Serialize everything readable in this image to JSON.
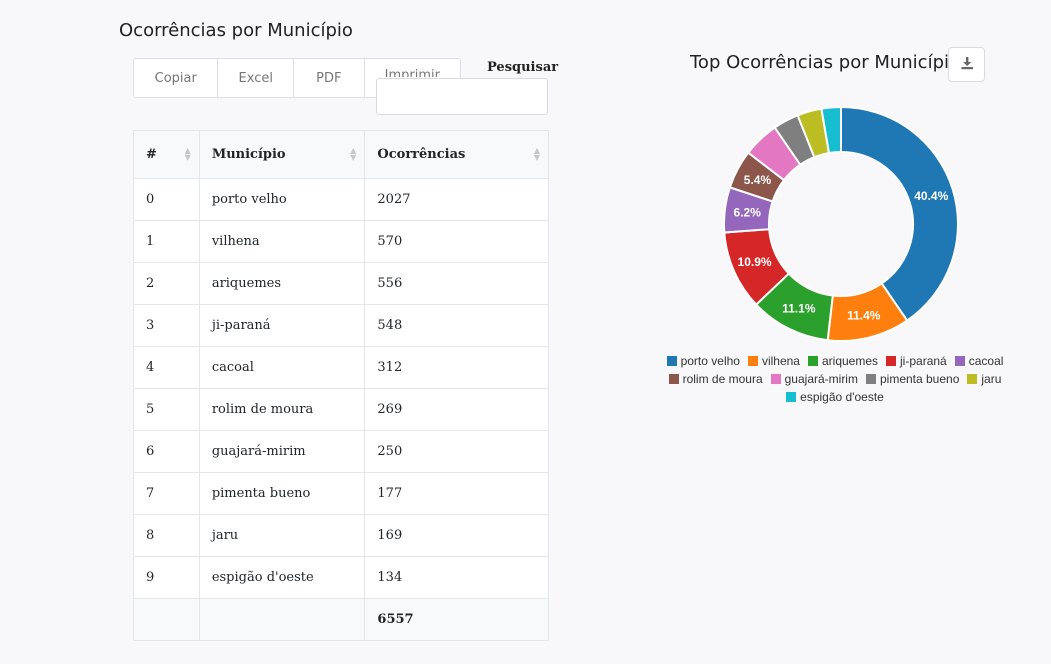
{
  "left_title": "Ocorrências por Município",
  "buttons": [
    "Copiar",
    "Excel",
    "PDF",
    "Imprimir"
  ],
  "search": {
    "label": "Pesquisar",
    "value": ""
  },
  "table": {
    "headers": [
      "#",
      "Município",
      "Ocorrências"
    ],
    "rows": [
      [
        "0",
        "porto velho",
        "2027"
      ],
      [
        "1",
        "vilhena",
        "570"
      ],
      [
        "2",
        "ariquemes",
        "556"
      ],
      [
        "3",
        "ji-paraná",
        "548"
      ],
      [
        "4",
        "cacoal",
        "312"
      ],
      [
        "5",
        "rolim de moura",
        "269"
      ],
      [
        "6",
        "guajará-mirim",
        "250"
      ],
      [
        "7",
        "pimenta bueno",
        "177"
      ],
      [
        "8",
        "jaru",
        "169"
      ],
      [
        "9",
        "espigão d'oeste",
        "134"
      ]
    ],
    "total": "6557"
  },
  "chart_title": "Top Ocorrências por Município",
  "download_icon": "download-icon",
  "chart_data": {
    "type": "pie",
    "title": "Top Ocorrências por Município",
    "donut": true,
    "legend_position": "bottom",
    "labels": [
      "porto velho",
      "vilhena",
      "ariquemes",
      "ji-paraná",
      "cacoal",
      "rolim de moura",
      "guajará-mirim",
      "pimenta bueno",
      "jaru",
      "espigão d'oeste"
    ],
    "values": [
      2027,
      570,
      556,
      548,
      312,
      269,
      250,
      177,
      169,
      134
    ],
    "percent_labels": [
      "40.4%",
      "11.4%",
      "11.1%",
      "10.9%",
      "6.2%",
      "5.4%",
      "",
      "",
      "",
      ""
    ],
    "colors": [
      "#1f77b4",
      "#ff7f0e",
      "#2ca02c",
      "#d62728",
      "#9467bd",
      "#8c564b",
      "#e377c2",
      "#7f7f7f",
      "#bcbd22",
      "#17becf"
    ]
  }
}
